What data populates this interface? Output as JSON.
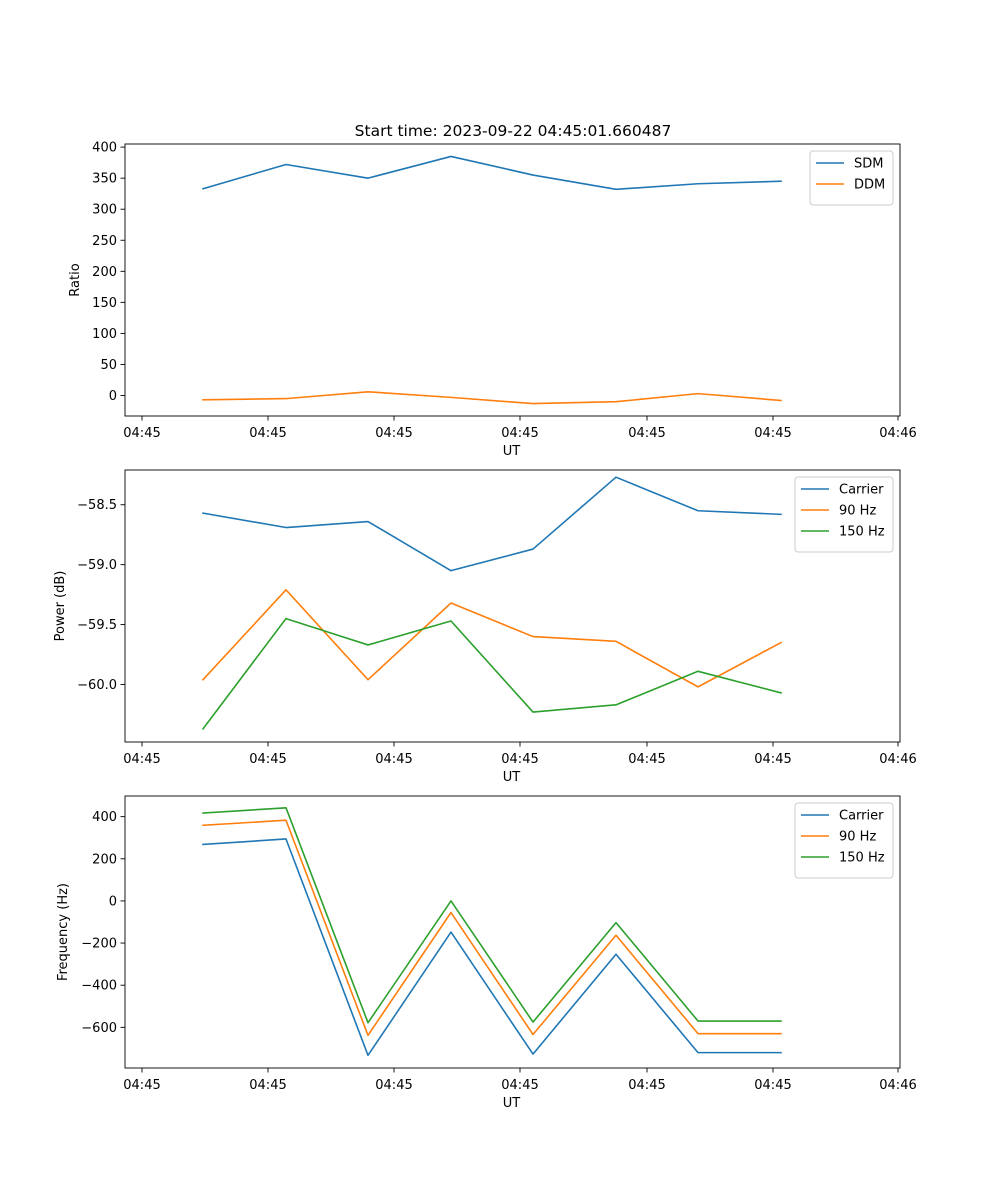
{
  "title": "Start time: 2023-09-22 04:45:01.660487",
  "chart_data": [
    {
      "type": "line",
      "xlabel": "UT",
      "ylabel": "Ratio",
      "ylim": [
        -33,
        405
      ],
      "yticks": [
        0,
        50,
        100,
        150,
        200,
        250,
        300,
        350,
        400
      ],
      "ytick_labels": [
        "0",
        "50",
        "100",
        "150",
        "200",
        "250",
        "300",
        "350",
        "400"
      ],
      "xtick_labels": [
        "04:45",
        "04:45",
        "04:45",
        "04:45",
        "04:45",
        "04:45",
        "04:46"
      ],
      "legend_position": "top-right",
      "series": [
        {
          "name": "SDM",
          "color": "#1f77b4",
          "values": [
            333,
            372,
            350,
            385,
            355,
            332,
            341,
            345
          ]
        },
        {
          "name": "DDM",
          "color": "#ff7f0e",
          "values": [
            -7,
            -5,
            6,
            -3,
            -13,
            -10,
            3,
            -8
          ]
        }
      ]
    },
    {
      "type": "line",
      "xlabel": "UT",
      "ylabel": "Power (dB)",
      "ylim": [
        -60.48,
        -58.21
      ],
      "yticks": [
        -60.0,
        -59.5,
        -59.0,
        -58.5
      ],
      "ytick_labels": [
        "−60.0",
        "−59.5",
        "−59.0",
        "−58.5"
      ],
      "xtick_labels": [
        "04:45",
        "04:45",
        "04:45",
        "04:45",
        "04:45",
        "04:45",
        "04:46"
      ],
      "legend_position": "top-right",
      "series": [
        {
          "name": "Carrier",
          "color": "#1f77b4",
          "values": [
            -58.57,
            -58.69,
            -58.64,
            -59.05,
            -58.87,
            -58.27,
            -58.55,
            -58.58
          ]
        },
        {
          "name": "90 Hz",
          "color": "#ff7f0e",
          "values": [
            -59.96,
            -59.21,
            -59.96,
            -59.32,
            -59.6,
            -59.64,
            -60.02,
            -59.65
          ]
        },
        {
          "name": "150 Hz",
          "color": "#2ca02c",
          "values": [
            -60.37,
            -59.45,
            -59.67,
            -59.47,
            -60.23,
            -60.17,
            -59.89,
            -60.07
          ]
        }
      ]
    },
    {
      "type": "line",
      "xlabel": "UT",
      "ylabel": "Frequency (Hz)",
      "ylim": [
        -793,
        498
      ],
      "yticks": [
        -600,
        -400,
        -200,
        0,
        200,
        400
      ],
      "ytick_labels": [
        "−600",
        "−400",
        "−200",
        "0",
        "200",
        "400"
      ],
      "xtick_labels": [
        "04:45",
        "04:45",
        "04:45",
        "04:45",
        "04:45",
        "04:45",
        "04:46"
      ],
      "legend_position": "top-right",
      "series": [
        {
          "name": "Carrier",
          "color": "#1f77b4",
          "values": [
            268,
            294,
            -733,
            -148,
            -727,
            -253,
            -720,
            -720
          ]
        },
        {
          "name": "90 Hz",
          "color": "#ff7f0e",
          "values": [
            359,
            383,
            -638,
            -55,
            -634,
            -163,
            -630,
            -630
          ]
        },
        {
          "name": "150 Hz",
          "color": "#2ca02c",
          "values": [
            417,
            442,
            -578,
            0,
            -575,
            -103,
            -570,
            -570
          ]
        }
      ]
    }
  ]
}
